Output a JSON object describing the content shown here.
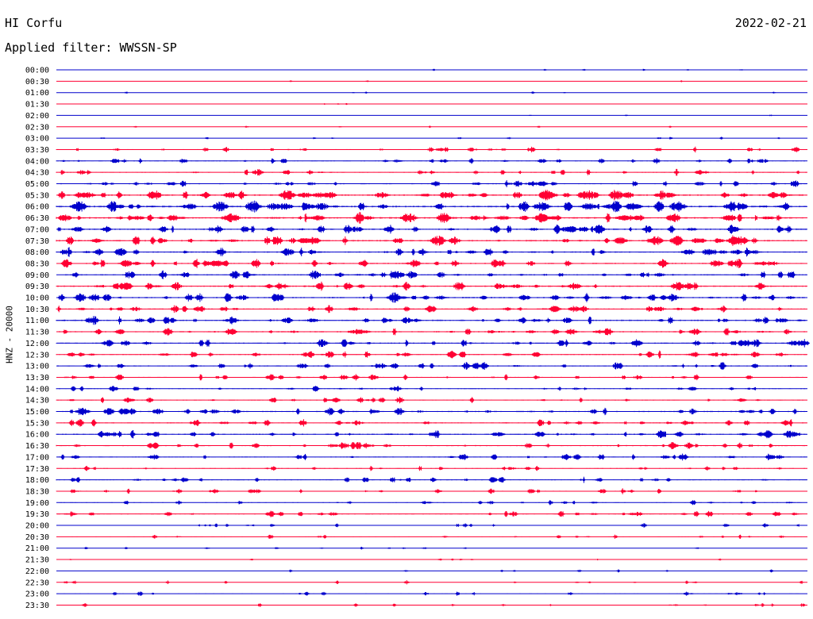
{
  "header": {
    "station": "HI Corfu",
    "date": "2022-02-21",
    "filter": "Applied filter: WWSSN-SP"
  },
  "chart_data": {
    "type": "line",
    "title": "HI Corfu",
    "ylabel": "HNZ - 20000",
    "row_labels": [
      "00:00",
      "00:30",
      "01:00",
      "01:30",
      "02:00",
      "02:30",
      "03:00",
      "03:30",
      "04:00",
      "04:30",
      "05:00",
      "05:30",
      "06:00",
      "06:30",
      "07:00",
      "07:30",
      "08:00",
      "08:30",
      "09:00",
      "09:30",
      "10:00",
      "10:30",
      "11:00",
      "11:30",
      "12:00",
      "12:30",
      "13:00",
      "13:30",
      "14:00",
      "14:30",
      "15:00",
      "15:30",
      "16:00",
      "16:30",
      "17:00",
      "17:30",
      "18:00",
      "18:30",
      "19:00",
      "19:30",
      "20:00",
      "20:30",
      "21:00",
      "21:30",
      "22:00",
      "22:30",
      "23:00",
      "23:30"
    ],
    "colors": {
      "even": "#0000cc",
      "odd": "#ff0033"
    },
    "row_activity": [
      0.1,
      0.05,
      0.1,
      0.05,
      0.05,
      0.1,
      0.2,
      0.45,
      0.5,
      0.5,
      0.6,
      0.9,
      1.0,
      0.95,
      0.8,
      0.85,
      0.75,
      0.75,
      0.7,
      0.8,
      0.8,
      0.7,
      0.75,
      0.7,
      0.7,
      0.6,
      0.6,
      0.5,
      0.5,
      0.5,
      0.65,
      0.6,
      0.7,
      0.6,
      0.55,
      0.4,
      0.5,
      0.45,
      0.35,
      0.5,
      0.3,
      0.3,
      0.2,
      0.15,
      0.15,
      0.25,
      0.3,
      0.25
    ]
  }
}
